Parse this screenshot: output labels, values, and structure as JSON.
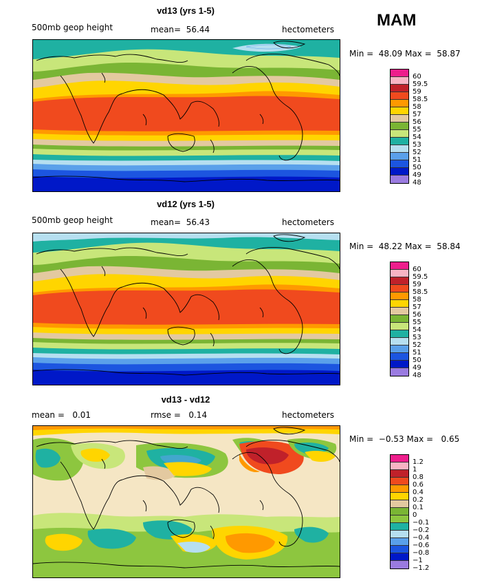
{
  "season": "MAM",
  "panels": [
    {
      "title": "vd13 (yrs 1-5)",
      "left_label": "500mb geop height",
      "center_label": "mean=  56.44",
      "right_label": "hectometers",
      "minmax": "Min =  48.09 Max =  58.87",
      "legend": [
        "60",
        "59.5",
        "59",
        "58.5",
        "58",
        "57",
        "56",
        "55",
        "54",
        "53",
        "52",
        "51",
        "50",
        "49",
        "48"
      ],
      "colors": [
        "#ee1e8c",
        "#f8b4c4",
        "#c0212a",
        "#f04a1e",
        "#ff9900",
        "#ffd500",
        "#e3c9a0",
        "#7ab534",
        "#c8e67a",
        "#1fb1a2",
        "#b6dff0",
        "#5aa0ea",
        "#1c55e0",
        "#0018c8",
        "#9a7be0"
      ]
    },
    {
      "title": "vd12 (yrs 1-5)",
      "left_label": "500mb geop height",
      "center_label": "mean=  56.43",
      "right_label": "hectometers",
      "minmax": "Min =  48.22 Max =  58.84",
      "legend": [
        "60",
        "59.5",
        "59",
        "58.5",
        "58",
        "57",
        "56",
        "55",
        "54",
        "53",
        "52",
        "51",
        "50",
        "49",
        "48"
      ],
      "colors": [
        "#ee1e8c",
        "#f8b4c4",
        "#c0212a",
        "#f04a1e",
        "#ff9900",
        "#ffd500",
        "#e3c9a0",
        "#7ab534",
        "#c8e67a",
        "#1fb1a2",
        "#b6dff0",
        "#5aa0ea",
        "#1c55e0",
        "#0018c8",
        "#9a7be0"
      ]
    },
    {
      "title": "vd13 - vd12",
      "left_label": "mean =   0.01",
      "center_label": "rmse =   0.14",
      "right_label": "hectometers",
      "minmax": "Min =  −0.53 Max =   0.65",
      "legend": [
        "1.2",
        "1",
        "0.8",
        "0.6",
        "0.4",
        "0.2",
        "0.1",
        "0",
        "−0.1",
        "−0.2",
        "−0.4",
        "−0.6",
        "−0.8",
        "−1",
        "−1.2"
      ],
      "colors": [
        "#ee1e8c",
        "#f8b4c4",
        "#c0212a",
        "#f04a1e",
        "#ff9900",
        "#ffd500",
        "#e3c9a0",
        "#7ab534",
        "#8dc63f",
        "#1fb1a2",
        "#b6dff0",
        "#5aa0ea",
        "#1c55e0",
        "#0018c8",
        "#9a7be0"
      ]
    }
  ]
}
